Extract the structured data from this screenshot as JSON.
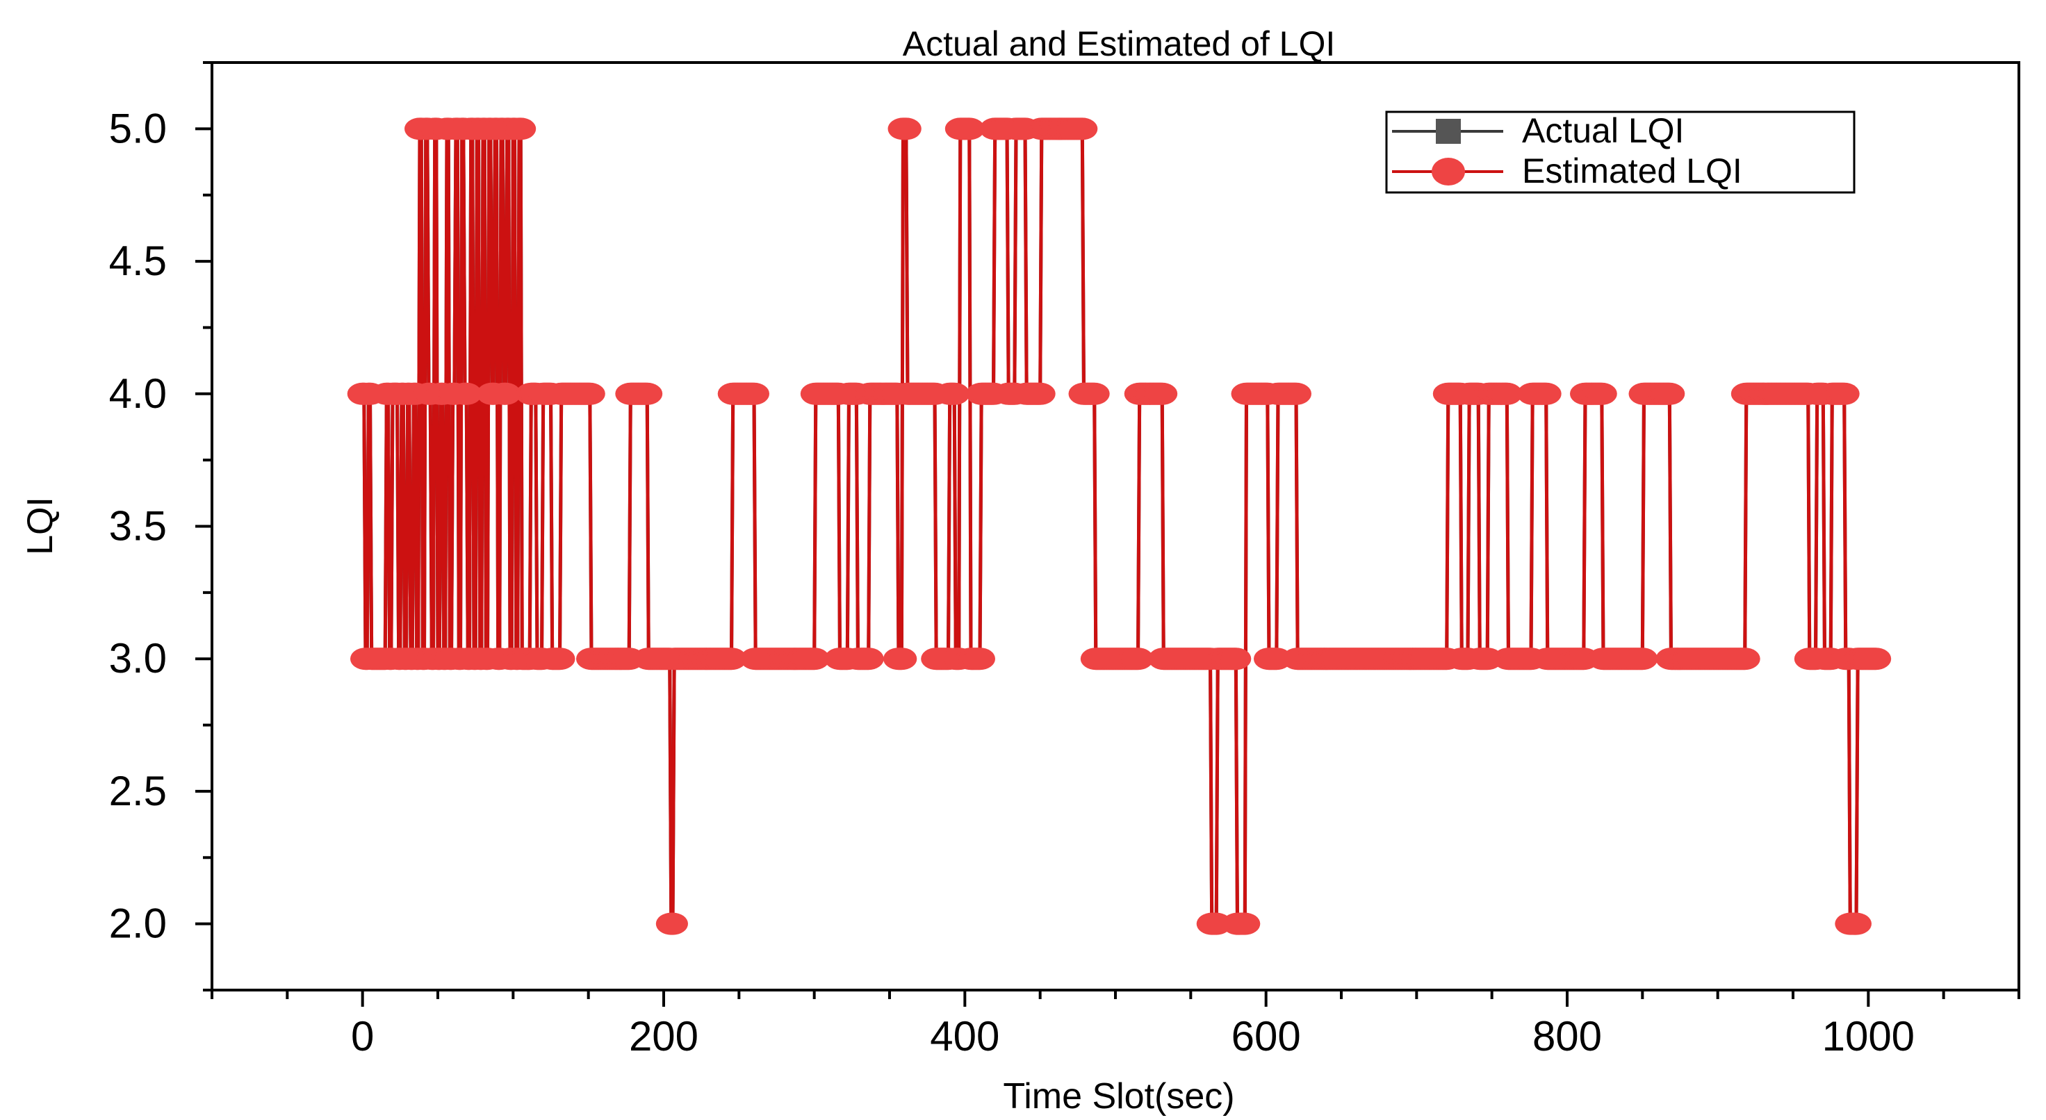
{
  "chart_data": {
    "type": "line",
    "title": "Actual and Estimated of LQI",
    "xlabel": "Time Slot(sec)",
    "ylabel": "LQI",
    "xlim": [
      -100,
      1100
    ],
    "ylim": [
      1.75,
      5.25
    ],
    "xticks": [
      0,
      200,
      400,
      600,
      800,
      1000
    ],
    "xtick_labels": [
      "0",
      "200",
      "400",
      "600",
      "800",
      "1000"
    ],
    "yticks": [
      2.0,
      2.5,
      3.0,
      3.5,
      4.0,
      4.5,
      5.0
    ],
    "ytick_labels": [
      "2.0",
      "2.5",
      "3.0",
      "3.5",
      "4.0",
      "4.5",
      "5.0"
    ],
    "grid": false,
    "legend_position": "top-right",
    "legend": [
      "Actual LQI",
      "Estimated LQI"
    ],
    "segments": [
      [
        0,
        1,
        4
      ],
      [
        2,
        3,
        3
      ],
      [
        4,
        5,
        4
      ],
      [
        6,
        15,
        3
      ],
      [
        16,
        17,
        4
      ],
      [
        18,
        19,
        3
      ],
      [
        20,
        23,
        4
      ],
      [
        24,
        25,
        3
      ],
      [
        26,
        27,
        4
      ],
      [
        28,
        29,
        3
      ],
      [
        30,
        31,
        4
      ],
      [
        32,
        33,
        3
      ],
      [
        34,
        35,
        4
      ],
      [
        36,
        37,
        3
      ],
      [
        38,
        39,
        5
      ],
      [
        40,
        41,
        3
      ],
      [
        42,
        43,
        5
      ],
      [
        44,
        45,
        4
      ],
      [
        46,
        47,
        3
      ],
      [
        48,
        49,
        5
      ],
      [
        50,
        51,
        3
      ],
      [
        52,
        53,
        4
      ],
      [
        54,
        55,
        3
      ],
      [
        56,
        57,
        5
      ],
      [
        58,
        59,
        3
      ],
      [
        60,
        61,
        4
      ],
      [
        62,
        63,
        5
      ],
      [
        64,
        65,
        3
      ],
      [
        66,
        67,
        5
      ],
      [
        68,
        69,
        4
      ],
      [
        70,
        71,
        3
      ],
      [
        72,
        73,
        5
      ],
      [
        74,
        75,
        3
      ],
      [
        76,
        77,
        5
      ],
      [
        78,
        79,
        3
      ],
      [
        80,
        81,
        5
      ],
      [
        82,
        83,
        3
      ],
      [
        84,
        85,
        5
      ],
      [
        86,
        87,
        4
      ],
      [
        88,
        89,
        5
      ],
      [
        90,
        91,
        3
      ],
      [
        92,
        93,
        5
      ],
      [
        94,
        95,
        4
      ],
      [
        96,
        97,
        5
      ],
      [
        98,
        99,
        3
      ],
      [
        100,
        101,
        5
      ],
      [
        102,
        103,
        3
      ],
      [
        104,
        105,
        5
      ],
      [
        106,
        111,
        3
      ],
      [
        112,
        115,
        4
      ],
      [
        116,
        119,
        3
      ],
      [
        120,
        125,
        4
      ],
      [
        126,
        131,
        3
      ],
      [
        132,
        151,
        4
      ],
      [
        152,
        177,
        3
      ],
      [
        178,
        189,
        4
      ],
      [
        190,
        204,
        3
      ],
      [
        205,
        206,
        2
      ],
      [
        207,
        245,
        3
      ],
      [
        246,
        260,
        4
      ],
      [
        261,
        300,
        3
      ],
      [
        301,
        316,
        4
      ],
      [
        317,
        322,
        3
      ],
      [
        323,
        328,
        4
      ],
      [
        329,
        336,
        3
      ],
      [
        337,
        355,
        4
      ],
      [
        356,
        358,
        3
      ],
      [
        359,
        361,
        5
      ],
      [
        362,
        380,
        4
      ],
      [
        381,
        389,
        3
      ],
      [
        390,
        393,
        4
      ],
      [
        394,
        396,
        3
      ],
      [
        397,
        403,
        5
      ],
      [
        404,
        410,
        3
      ],
      [
        411,
        419,
        4
      ],
      [
        420,
        428,
        5
      ],
      [
        429,
        433,
        4
      ],
      [
        434,
        440,
        5
      ],
      [
        441,
        450,
        4
      ],
      [
        451,
        478,
        5
      ],
      [
        479,
        486,
        4
      ],
      [
        487,
        515,
        3
      ],
      [
        516,
        531,
        4
      ],
      [
        532,
        563,
        3
      ],
      [
        564,
        567,
        2
      ],
      [
        568,
        580,
        3
      ],
      [
        581,
        586,
        2
      ],
      [
        587,
        601,
        4
      ],
      [
        602,
        607,
        3
      ],
      [
        608,
        620,
        4
      ],
      [
        621,
        720,
        3
      ],
      [
        721,
        729,
        4
      ],
      [
        730,
        734,
        3
      ],
      [
        735,
        741,
        4
      ],
      [
        742,
        747,
        3
      ],
      [
        748,
        760,
        4
      ],
      [
        761,
        776,
        3
      ],
      [
        777,
        786,
        4
      ],
      [
        787,
        811,
        3
      ],
      [
        812,
        823,
        4
      ],
      [
        824,
        850,
        3
      ],
      [
        851,
        868,
        4
      ],
      [
        869,
        918,
        3
      ],
      [
        919,
        960,
        4
      ],
      [
        961,
        965,
        3
      ],
      [
        966,
        970,
        4
      ],
      [
        971,
        975,
        3
      ],
      [
        976,
        984,
        4
      ],
      [
        985,
        987,
        3
      ],
      [
        988,
        992,
        2
      ],
      [
        993,
        1005,
        3
      ]
    ]
  }
}
